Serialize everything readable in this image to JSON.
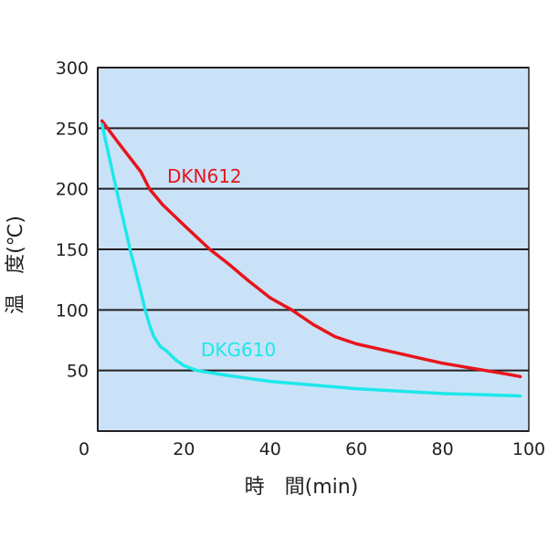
{
  "chart_data": {
    "type": "line",
    "title": "",
    "xlabel": "時　間(min)",
    "ylabel": "温　度(℃)",
    "xlim": [
      0,
      100
    ],
    "ylim": [
      0,
      300
    ],
    "xticks": [
      0,
      20,
      40,
      60,
      80,
      100
    ],
    "yticks": [
      50,
      100,
      150,
      200,
      250,
      300
    ],
    "grid": "horizontal",
    "background_color": "#c9e2f7",
    "series": [
      {
        "name": "DKN612",
        "color": "#e8141b",
        "x": [
          1,
          5,
          10,
          12,
          15,
          20,
          26,
          30,
          35,
          40,
          45,
          50,
          55,
          60,
          65,
          70,
          75,
          80,
          85,
          90,
          95,
          98
        ],
        "y": [
          256,
          237,
          214,
          200,
          187,
          170,
          150,
          139,
          124,
          110,
          100,
          88,
          78,
          72,
          68,
          64,
          60,
          56,
          53,
          50,
          47,
          45
        ]
      },
      {
        "name": "DKG610",
        "color": "#1de8ea",
        "x": [
          1,
          4.3,
          7.5,
          10,
          11,
          12,
          13,
          14.5,
          16,
          18,
          20,
          23,
          30,
          40,
          50,
          60,
          70,
          80,
          90,
          98
        ],
        "y": [
          253,
          200,
          150,
          115,
          100,
          88,
          78,
          70,
          66,
          59,
          54,
          50,
          46,
          41,
          38,
          35,
          33,
          31,
          30,
          29
        ]
      }
    ]
  }
}
